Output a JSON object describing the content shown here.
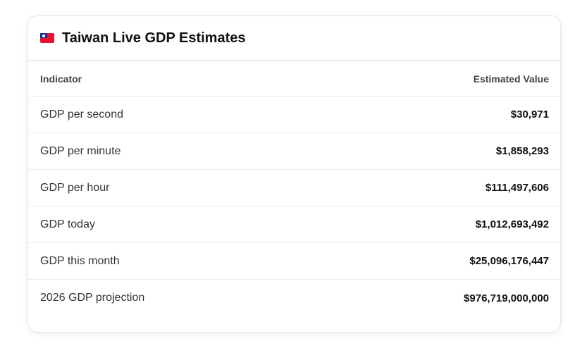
{
  "card": {
    "flag_icon": "taiwan-flag-icon",
    "title": "Taiwan Live GDP Estimates"
  },
  "table": {
    "headers": [
      "Indicator",
      "Estimated Value"
    ],
    "rows": [
      {
        "label": "GDP per second",
        "value": "$30,971"
      },
      {
        "label": "GDP per minute",
        "value": "$1,858,293"
      },
      {
        "label": "GDP per hour",
        "value": "$111,497,606"
      },
      {
        "label": "GDP today",
        "value": "$1,012,693,492"
      },
      {
        "label": "GDP this month",
        "value": "$25,096,176,447"
      },
      {
        "label": "2026 GDP projection",
        "value": "$976,719,000,000"
      }
    ]
  },
  "colors": {
    "flag_red": "#e8112d",
    "flag_blue": "#1c2f9c"
  }
}
